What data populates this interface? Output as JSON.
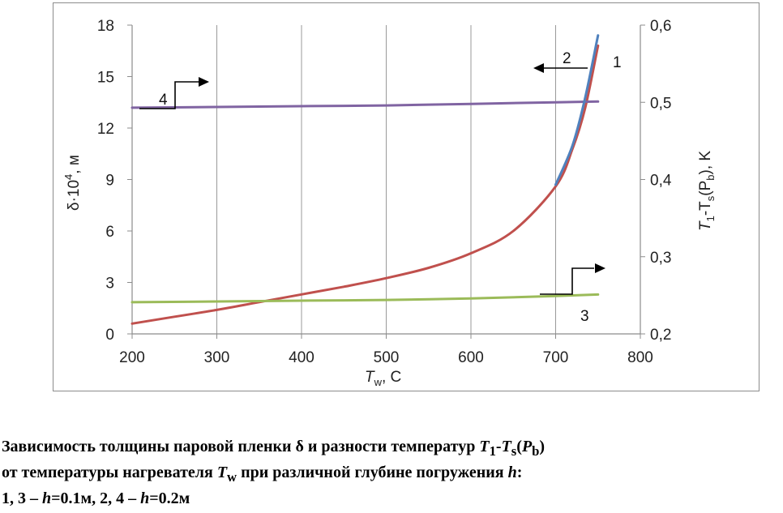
{
  "chart_data": {
    "type": "line",
    "x_axis": {
      "label": "T",
      "label_sub": "w",
      "label_suffix": ", C",
      "ticks": [
        "200",
        "300",
        "400",
        "500",
        "600",
        "700",
        "800"
      ],
      "range": [
        200,
        800
      ]
    },
    "y_left": {
      "label_prefix": "δ·10",
      "label_sup": "4",
      "label_suffix": ", м",
      "ticks": [
        "0",
        "3",
        "6",
        "9",
        "12",
        "15",
        "18"
      ],
      "range": [
        0,
        18
      ]
    },
    "y_right": {
      "label_pre": "T",
      "label_sub1": "1",
      "label_mid": "-T",
      "label_sub2": "s",
      "label_paren": "(P",
      "label_sub3": "b",
      "label_post": "), K",
      "ticks": [
        "0,2",
        "0,3",
        "0,4",
        "0,5",
        "0,6"
      ],
      "range": [
        0.2,
        0.6
      ]
    },
    "series": [
      {
        "name": "1",
        "axis": "left",
        "color": "#c0504d",
        "x": [
          200,
          250,
          300,
          350,
          400,
          450,
          500,
          550,
          600,
          650,
          700,
          720,
          735,
          750
        ],
        "y": [
          0.6,
          1.0,
          1.4,
          1.85,
          2.3,
          2.75,
          3.25,
          3.85,
          4.7,
          6.0,
          8.6,
          10.8,
          13.2,
          16.8
        ]
      },
      {
        "name": "2",
        "axis": "left",
        "color": "#4f81bd",
        "x": [
          700,
          720,
          735,
          750
        ],
        "y": [
          8.7,
          11.0,
          13.8,
          17.4
        ]
      },
      {
        "name": "3",
        "axis": "right",
        "color": "#9bbb59",
        "x": [
          200,
          300,
          400,
          500,
          600,
          700,
          750
        ],
        "y": [
          0.241,
          0.242,
          0.243,
          0.244,
          0.246,
          0.249,
          0.251
        ]
      },
      {
        "name": "4",
        "axis": "right",
        "color": "#8064a2",
        "x": [
          200,
          300,
          400,
          500,
          600,
          700,
          750
        ],
        "y": [
          0.493,
          0.494,
          0.495,
          0.496,
          0.498,
          0.5,
          0.501
        ]
      }
    ],
    "annotations": [
      "1",
      "2",
      "3",
      "4"
    ],
    "grid": "vertical"
  },
  "caption": {
    "line1": {
      "a": "Зависимость толщины паровой пленки δ и разности температур ",
      "t1": "T",
      "t1sub": "1",
      "dash": "-",
      "ts": "T",
      "tssub": "s",
      "p_open": "(",
      "pb": "P",
      "pbsub": "b",
      "p_close": ")"
    },
    "line2": {
      "a": "от температуры нагревателя ",
      "tw": "T",
      "twsub": "w",
      "b": " при различной глубине погружения ",
      "h": "h",
      "c": ":"
    },
    "line3": {
      "a": "1, 3 – ",
      "h1": "h",
      "b": "=0.1м, 2, 4 – ",
      "h2": "h",
      "c": "=0.2м"
    }
  }
}
